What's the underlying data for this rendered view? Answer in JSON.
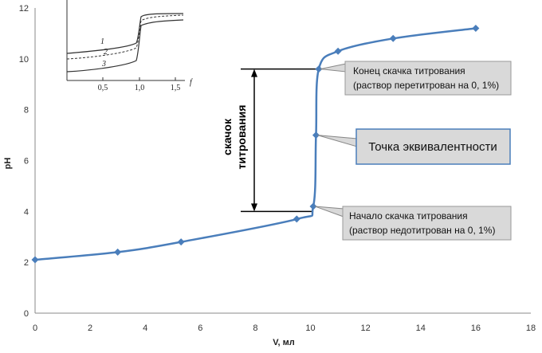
{
  "chart_data": {
    "type": "line",
    "xlabel": "V, мл",
    "ylabel": "pH",
    "xlim": [
      0,
      18
    ],
    "ylim": [
      0,
      12
    ],
    "xticks": [
      0,
      2,
      4,
      6,
      8,
      10,
      12,
      14,
      16,
      18
    ],
    "yticks": [
      0,
      2,
      4,
      6,
      8,
      10,
      12
    ],
    "grid": false,
    "series": [
      {
        "color": "#4a7ebb",
        "x": [
          0,
          3,
          5.3,
          9.5,
          10.1,
          10.2,
          10.3,
          11,
          13,
          16
        ],
        "y": [
          2.1,
          2.4,
          2.8,
          3.7,
          4.2,
          7.0,
          9.6,
          10.3,
          10.8,
          11.2
        ]
      }
    ],
    "jump_bracket": {
      "y_from": 4,
      "y_to": 9.6,
      "label_line1": "скачок",
      "label_line2": "титрования"
    },
    "annotations": [
      {
        "id": "end",
        "line1": "Конец скачка титрования",
        "line2": "(раствор перетитрован на 0, 1%)",
        "point": [
          10.3,
          9.6
        ]
      },
      {
        "id": "eq",
        "line1": "Точка эквивалентности",
        "point": [
          10.2,
          7.0
        ]
      },
      {
        "id": "start",
        "line1": "Начало скачка титрования",
        "line2": "(раствор недотитрован на 0, 1%)",
        "point": [
          10.1,
          4.2
        ]
      }
    ],
    "inset": {
      "xticks": [
        "0,5",
        "1,0",
        "1,5"
      ],
      "x_axis_symbol": "f",
      "curve_labels": [
        "1",
        "2",
        "3"
      ]
    }
  }
}
